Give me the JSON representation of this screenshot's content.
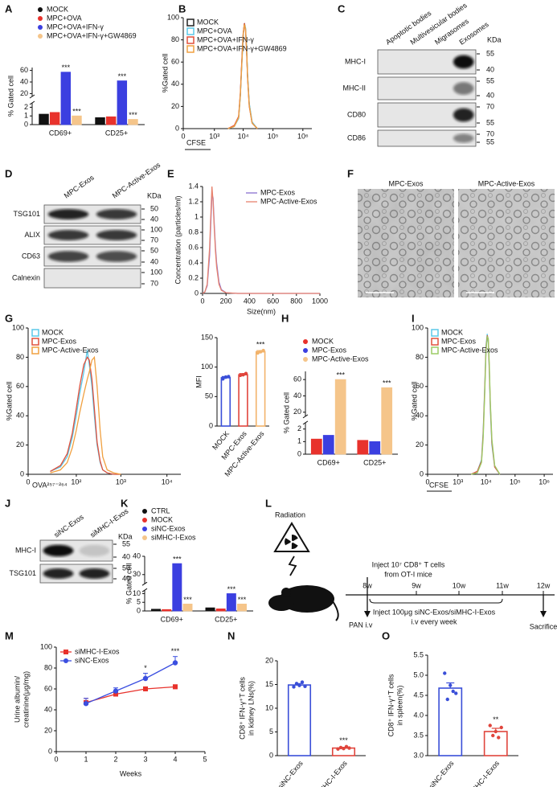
{
  "panel_labels": [
    "A",
    "B",
    "C",
    "D",
    "E",
    "F",
    "G",
    "H",
    "I",
    "J",
    "K",
    "L",
    "M",
    "N",
    "O"
  ],
  "chart_data": [
    {
      "type": "bar",
      "ylabel": "% Gated cell",
      "categories": [
        "CD69+",
        "CD25+"
      ],
      "ylim": [
        0,
        65
      ],
      "yticks": [
        0,
        1,
        2,
        20,
        40,
        60
      ],
      "axis_break": [
        2.5,
        15
      ],
      "legend": "top",
      "series": [
        {
          "name": "MOCK",
          "color": "#111111",
          "values": [
            1.2,
            0.8
          ]
        },
        {
          "name": "MPC+OVA",
          "color": "#e8322c",
          "values": [
            1.4,
            0.9
          ]
        },
        {
          "name": "MPC+OVA+IFN-γ",
          "color": "#3b3fe0",
          "values": [
            57,
            42
          ],
          "significance": [
            "***",
            "***"
          ]
        },
        {
          "name": "MPC+OVA+IFN-γ+GW4869",
          "color": "#f5c58a",
          "values": [
            1.0,
            0.6
          ],
          "significance": [
            "***",
            "***"
          ]
        }
      ]
    },
    {
      "type": "line",
      "ylabel": "%Gated cell",
      "xlabel": "CFSE",
      "xscale": "symlog",
      "xlim": [
        0,
        2000000
      ],
      "xticks": [
        0,
        {
          "value": 1000,
          "label": "10³"
        },
        {
          "value": 10000,
          "label": "10⁴"
        },
        {
          "value": 100000,
          "label": "10⁵"
        },
        {
          "value": 1000000,
          "label": "10⁶"
        }
      ],
      "ylim": [
        0,
        100
      ],
      "yticks": [
        0,
        20,
        40,
        60,
        80,
        100
      ],
      "legend": "upper left",
      "x": [
        3000,
        5000,
        7000,
        8000,
        9000,
        10000,
        11000,
        12000,
        13000,
        14000,
        16000,
        20000,
        30000
      ],
      "series": [
        {
          "name": "MOCK",
          "color": "#222222",
          "values": [
            0,
            2,
            10,
            30,
            60,
            85,
            95,
            90,
            72,
            48,
            22,
            5,
            0
          ]
        },
        {
          "name": "MPC+OVA",
          "color": "#5bc8e8",
          "values": [
            0,
            2,
            9,
            29,
            58,
            84,
            94,
            91,
            73,
            49,
            23,
            6,
            0
          ]
        },
        {
          "name": "MPC+OVA+IFN-γ",
          "color": "#e0503c",
          "values": [
            0,
            3,
            11,
            32,
            62,
            86,
            95,
            88,
            70,
            46,
            20,
            5,
            0
          ]
        },
        {
          "name": "MPC+OVA+IFN-γ+GW4869",
          "color": "#f0a040",
          "values": [
            0,
            2,
            10,
            30,
            59,
            85,
            94,
            90,
            72,
            47,
            21,
            5,
            0
          ]
        }
      ]
    },
    {
      "type": "line",
      "ylabel": "Concentration (particles/ml)",
      "xlabel": "Size(nm)",
      "xlim": [
        0,
        1000
      ],
      "xticks": [
        0,
        200,
        400,
        600,
        800,
        1000
      ],
      "ylim": [
        0,
        1.4
      ],
      "yticks": [
        0,
        0.2,
        0.4,
        0.6,
        0.8,
        1,
        1.2,
        1.4
      ],
      "legend": "upper right",
      "x": [
        0,
        20,
        40,
        60,
        70,
        80,
        90,
        100,
        110,
        120,
        140,
        160,
        200,
        300,
        400,
        600,
        800,
        1000
      ],
      "series": [
        {
          "name": "MPC-Exos",
          "color": "#8a6fd0",
          "values": [
            0,
            0.02,
            0.1,
            0.5,
            0.9,
            1.3,
            1.25,
            0.9,
            0.6,
            0.4,
            0.15,
            0.05,
            0.01,
            0,
            0,
            0,
            0,
            0
          ]
        },
        {
          "name": "MPC-Active-Exos",
          "color": "#e8836e",
          "values": [
            0,
            0.02,
            0.12,
            0.6,
            1.0,
            1.4,
            1.2,
            0.85,
            0.55,
            0.35,
            0.12,
            0.04,
            0.01,
            0,
            0,
            0,
            0,
            0
          ]
        }
      ]
    },
    {
      "type": "line",
      "ylabel": "%Gated cell",
      "xlabel": "OVA²⁵⁷⁻²⁶⁴",
      "xscale": "symlog",
      "xlim": [
        0,
        20000
      ],
      "xticks": [
        0,
        {
          "value": 100,
          "label": "10²"
        },
        {
          "value": 1000,
          "label": "10³"
        },
        {
          "value": 10000,
          "label": "10⁴"
        }
      ],
      "ylim": [
        0,
        100
      ],
      "yticks": [
        0,
        20,
        40,
        60,
        80,
        100
      ],
      "legend": "upper left",
      "x": [
        20,
        40,
        60,
        80,
        100,
        120,
        150,
        180,
        200,
        230,
        260,
        300,
        350,
        400,
        500,
        700,
        1000
      ],
      "series": [
        {
          "name": "MOCK",
          "color": "#5bc8e8",
          "values": [
            2,
            5,
            12,
            25,
            40,
            55,
            70,
            85,
            75,
            60,
            40,
            20,
            8,
            3,
            1,
            0,
            0
          ]
        },
        {
          "name": "MPC-Exos",
          "color": "#e0503c",
          "values": [
            2,
            6,
            14,
            28,
            45,
            60,
            75,
            80,
            78,
            65,
            45,
            22,
            9,
            3,
            1,
            0,
            0
          ]
        },
        {
          "name": "MPC-Active-Exos",
          "color": "#f0a040",
          "values": [
            1,
            3,
            8,
            18,
            30,
            42,
            55,
            65,
            70,
            78,
            80,
            60,
            30,
            12,
            3,
            1,
            0
          ]
        }
      ]
    },
    {
      "type": "bar",
      "ylabel": "MFI",
      "bar_style": "outline",
      "categories": [
        "MOCK",
        "MPC-Exos",
        "MPC-Active-Exos"
      ],
      "values": [
        82,
        87,
        126
      ],
      "errors": [
        2,
        2,
        2
      ],
      "points": [
        [
          80,
          83,
          84
        ],
        [
          86,
          87,
          89
        ],
        [
          124,
          126,
          128
        ]
      ],
      "significance": [
        null,
        null,
        "***"
      ],
      "colors": [
        "#3a4fd8",
        "#e0453c",
        "#f2b36b"
      ],
      "ylim": [
        0,
        150
      ],
      "yticks": [
        0,
        50,
        100,
        150
      ]
    },
    {
      "type": "bar",
      "ylabel": "% Gated cell",
      "categories": [
        "CD69+",
        "CD25+"
      ],
      "ylim": [
        0,
        70
      ],
      "yticks": [
        0,
        1,
        2,
        20,
        40,
        60
      ],
      "axis_break": [
        2.5,
        15
      ],
      "legend": "top",
      "series": [
        {
          "name": "MOCK",
          "color": "#e8322c",
          "values": [
            1.2,
            1.1
          ]
        },
        {
          "name": "MPC-Exos",
          "color": "#3b3fe0",
          "values": [
            1.5,
            1.0
          ]
        },
        {
          "name": "MPC-Active-Exos",
          "color": "#f5c58a",
          "values": [
            60,
            50
          ],
          "significance": [
            "***",
            "***"
          ]
        }
      ]
    },
    {
      "type": "line",
      "ylabel": "%Gated cell",
      "xlabel": "CFSE",
      "xscale": "symlog",
      "xlim": [
        0,
        2000000
      ],
      "xticks": [
        0,
        {
          "value": 1000,
          "label": "10³"
        },
        {
          "value": 10000,
          "label": "10⁴"
        },
        {
          "value": 100000,
          "label": "10⁵"
        },
        {
          "value": 1000000,
          "label": "10⁶"
        }
      ],
      "ylim": [
        0,
        100
      ],
      "yticks": [
        0,
        20,
        40,
        60,
        80,
        100
      ],
      "legend": "upper left",
      "x": [
        3000,
        5000,
        7000,
        8000,
        9000,
        10000,
        11000,
        12000,
        13000,
        14000,
        16000,
        20000,
        30000
      ],
      "series": [
        {
          "name": "MOCK",
          "color": "#5bc8e8",
          "values": [
            0,
            2,
            10,
            30,
            60,
            88,
            96,
            90,
            70,
            45,
            20,
            5,
            0
          ]
        },
        {
          "name": "MPC-Exos",
          "color": "#e0503c",
          "values": [
            0,
            2,
            9,
            28,
            58,
            86,
            95,
            92,
            72,
            48,
            22,
            5,
            0
          ]
        },
        {
          "name": "MPC-Active-Exos",
          "color": "#9ccc65",
          "values": [
            0,
            1,
            8,
            25,
            55,
            84,
            94,
            93,
            75,
            50,
            24,
            6,
            0
          ]
        }
      ]
    },
    {
      "type": "bar",
      "ylabel": "% Gated cell",
      "categories": [
        "CD69+",
        "CD25+"
      ],
      "ylim": [
        0,
        40
      ],
      "yticks": [
        0,
        5,
        10,
        30,
        40
      ],
      "axis_break": [
        12,
        25
      ],
      "legend": "top",
      "series": [
        {
          "name": "CTRL",
          "color": "#111111",
          "values": [
            1.0,
            1.8
          ]
        },
        {
          "name": "MOCK",
          "color": "#e8322c",
          "values": [
            0.8,
            1.2
          ]
        },
        {
          "name": "siNC-Exos",
          "color": "#3b3fe0",
          "values": [
            36,
            10
          ],
          "significance": [
            "***",
            "***"
          ]
        },
        {
          "name": "siMHC-I-Exos",
          "color": "#f5c58a",
          "values": [
            4,
            4
          ],
          "significance": [
            "***",
            "***"
          ]
        }
      ]
    },
    {
      "type": "line",
      "ylabel": [
        "Urine albumin/",
        "creatinine(μg/mg)"
      ],
      "xlabel": "Weeks",
      "xlim": [
        0,
        5
      ],
      "xticks": [
        0,
        1,
        2,
        3,
        4,
        5
      ],
      "ylim": [
        0,
        100
      ],
      "yticks": [
        0,
        20,
        40,
        60,
        80,
        100
      ],
      "legend": "upper left",
      "x": [
        1,
        2,
        3,
        4
      ],
      "series": [
        {
          "name": "siMHC-I-Exos",
          "color": "#e8322c",
          "marker": "square",
          "values": [
            47,
            55,
            60,
            62
          ],
          "errors": [
            4,
            2,
            2,
            2
          ]
        },
        {
          "name": "siNC-Exos",
          "color": "#3b4fe0",
          "marker": "circle",
          "values": [
            46,
            58,
            70,
            85
          ],
          "errors": [
            5,
            3,
            5,
            6
          ],
          "significance": [
            null,
            null,
            "*",
            "***"
          ]
        }
      ]
    },
    {
      "type": "bar",
      "ylabel": [
        "CD8⁺ IFN-γ⁺T cells",
        "in kidney LNs(%)"
      ],
      "bar_style": "outline",
      "categories": [
        "siNC-Exos",
        "siMHC-I-Exos"
      ],
      "values": [
        14.9,
        1.6
      ],
      "errors": [
        0.3,
        0.15
      ],
      "points": [
        [
          14.5,
          15.2,
          14.8,
          15.5,
          14.6
        ],
        [
          1.4,
          1.7,
          1.5,
          1.9,
          1.6
        ]
      ],
      "significance": [
        null,
        "***"
      ],
      "colors": [
        "#3a4fd8",
        "#e0453c"
      ],
      "ylim": [
        0,
        20
      ],
      "yticks": [
        0,
        5,
        10,
        15,
        20
      ]
    },
    {
      "type": "bar",
      "ylabel": [
        "CD8⁺ IFN-γ⁺T cells",
        "in spleen(%)"
      ],
      "bar_style": "outline",
      "categories": [
        "siNC-Exos",
        "siMHC-I-Exos"
      ],
      "values": [
        4.68,
        3.6
      ],
      "errors": [
        0.13,
        0.08
      ],
      "points": [
        [
          5.05,
          4.4,
          4.75,
          4.6,
          4.55
        ],
        [
          3.75,
          3.5,
          3.6,
          3.45,
          3.7
        ]
      ],
      "significance": [
        null,
        "**"
      ],
      "colors": [
        "#3a4fd8",
        "#e0453c"
      ],
      "ylim": [
        3,
        5.5
      ],
      "yticks": [
        {
          "value": 3,
          "label": "3.0"
        },
        3.5,
        {
          "value": 4,
          "label": "4.0"
        },
        4.5,
        {
          "value": 5,
          "label": "5.0"
        },
        5.5
      ]
    }
  ],
  "blots": {
    "C": {
      "columns": [
        "Apoptotic bodies",
        "Multivesicular bodies",
        "Migrasomes",
        "Exosomes"
      ],
      "rows": [
        "MHC-I",
        "MHC-II",
        "CD80",
        "CD86"
      ],
      "markers": [
        [
          55,
          40
        ],
        [
          55,
          40
        ],
        [
          70,
          55
        ],
        [
          70,
          55
        ]
      ],
      "unit": "KDa"
    },
    "D": {
      "columns": [
        "MPC-Exos",
        "MPC-Active-Exos"
      ],
      "rows": [
        "TSG101",
        "ALIX",
        "CD63",
        "Calnexin"
      ],
      "markers": [
        [
          50,
          40
        ],
        [
          100,
          70
        ],
        [
          50,
          40
        ],
        [
          100,
          70
        ]
      ],
      "unit": "KDa"
    },
    "J": {
      "columns": [
        "siNC-Exos",
        "siMHC-I-Exos"
      ],
      "rows": [
        "MHC-I",
        "TSG101"
      ],
      "markers": [
        [
          55,
          40
        ],
        [
          50,
          40
        ]
      ],
      "unit": "KDa"
    }
  },
  "images": {
    "titles": [
      "MPC-Exos",
      "MPC-Active-Exos"
    ]
  },
  "diagram": {
    "radiation": "Radiation",
    "inject_cells": "Inject 10⁷ CD8⁺ T cells",
    "inject_cells_from": "from OT-I mice",
    "timeline": [
      "8w",
      "9w",
      "10w",
      "11w",
      "12w"
    ],
    "inject_exos": "Inject 100μg siNC-Exos/siMHC-I-Exos",
    "inject_exos_freq": "i.v every week",
    "pan": "PAN i.v",
    "sacrifice": "Sacrifice"
  }
}
